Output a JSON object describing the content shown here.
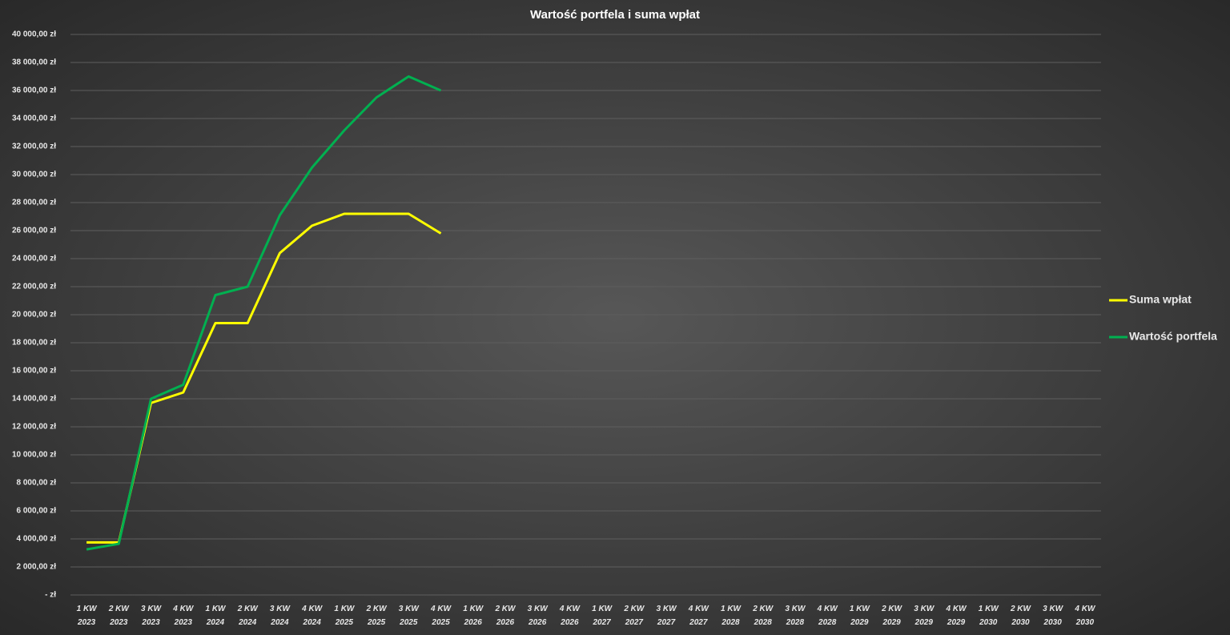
{
  "chart_data": {
    "type": "line",
    "title": "Wartość portfela i suma wpłat",
    "categories": [
      "1 KW 2023",
      "2 KW 2023",
      "3 KW 2023",
      "4 KW 2023",
      "1 KW 2024",
      "2 KW 2024",
      "3 KW 2024",
      "4 KW 2024",
      "1 KW 2025",
      "2 KW 2025",
      "3 KW 2025",
      "4 KW 2025",
      "1 KW 2026",
      "2 KW 2026",
      "3 KW 2026",
      "4 KW 2026",
      "1 KW 2027",
      "2 KW 2027",
      "3 KW 2027",
      "4 KW 2027",
      "1 KW 2028",
      "2 KW 2028",
      "3 KW 2028",
      "4 KW 2028",
      "1 KW 2029",
      "2 KW 2029",
      "3 KW 2029",
      "4 KW 2029",
      "1 KW 2030",
      "2 KW 2030",
      "3 KW 2030",
      "4 KW 2030"
    ],
    "series": [
      {
        "name": "Suma wpłat",
        "color": "#ffff00",
        "values": [
          3750,
          3750,
          13700,
          14450,
          19400,
          19400,
          24400,
          26350,
          27200,
          27200,
          27200,
          25800,
          null,
          null,
          null,
          null,
          null,
          null,
          null,
          null,
          null,
          null,
          null,
          null,
          null,
          null,
          null,
          null,
          null,
          null,
          null,
          null
        ]
      },
      {
        "name": "Wartość portfela",
        "color": "#00b050",
        "values": [
          3250,
          3650,
          14000,
          15000,
          21400,
          22000,
          27100,
          30500,
          33150,
          35500,
          37000,
          36000,
          null,
          null,
          null,
          null,
          null,
          null,
          null,
          null,
          null,
          null,
          null,
          null,
          null,
          null,
          null,
          null,
          null,
          null,
          null,
          null
        ]
      }
    ],
    "ylim": [
      0,
      40000
    ],
    "yticks": [
      {
        "value": 0,
        "label": "-   zł"
      },
      {
        "value": 2000,
        "label": "2 000,00 zł"
      },
      {
        "value": 4000,
        "label": "4 000,00 zł"
      },
      {
        "value": 6000,
        "label": "6 000,00 zł"
      },
      {
        "value": 8000,
        "label": "8 000,00 zł"
      },
      {
        "value": 10000,
        "label": "10 000,00 zł"
      },
      {
        "value": 12000,
        "label": "12 000,00 zł"
      },
      {
        "value": 14000,
        "label": "14 000,00 zł"
      },
      {
        "value": 16000,
        "label": "16 000,00 zł"
      },
      {
        "value": 18000,
        "label": "18 000,00 zł"
      },
      {
        "value": 20000,
        "label": "20 000,00 zł"
      },
      {
        "value": 22000,
        "label": "22 000,00 zł"
      },
      {
        "value": 24000,
        "label": "24 000,00 zł"
      },
      {
        "value": 26000,
        "label": "26 000,00 zł"
      },
      {
        "value": 28000,
        "label": "28 000,00 zł"
      },
      {
        "value": 30000,
        "label": "30 000,00 zł"
      },
      {
        "value": 32000,
        "label": "32 000,00 zł"
      },
      {
        "value": 34000,
        "label": "34 000,00 zł"
      },
      {
        "value": 36000,
        "label": "36 000,00 zł"
      },
      {
        "value": 38000,
        "label": "38 000,00 zł"
      },
      {
        "value": 40000,
        "label": "40 000,00 zł"
      }
    ],
    "grid": true,
    "legend": "right"
  }
}
